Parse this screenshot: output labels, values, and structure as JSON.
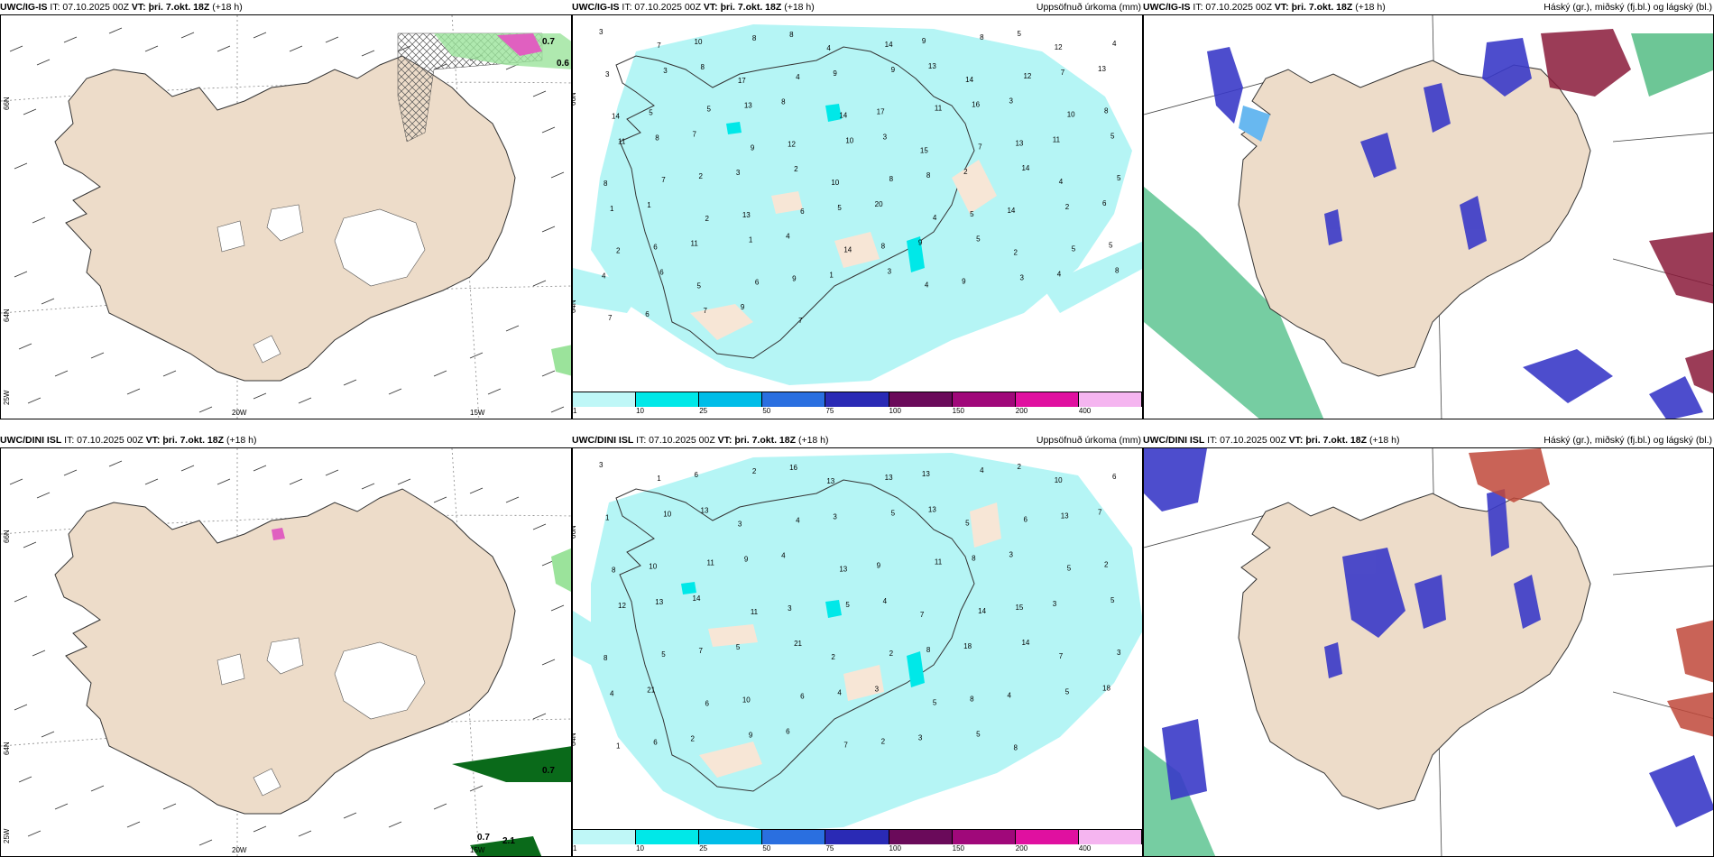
{
  "panels": {
    "p1": {
      "model": "UWC/IG-IS",
      "it": "IT: 07.10.2025 00Z",
      "vt": "VT: þri. 7.okt. 18Z",
      "lead": "(+18 h)",
      "title": ""
    },
    "p2": {
      "model": "UWC/IG-IS",
      "it": "IT: 07.10.2025 00Z",
      "vt": "VT: þri. 7.okt. 18Z",
      "lead": "(+18 h)",
      "title": "Uppsöfnuð úrkoma (mm)"
    },
    "p3": {
      "model": "UWC/IG-IS",
      "it": "IT: 07.10.2025 00Z",
      "vt": "VT: þri. 7.okt. 18Z",
      "lead": "(+18 h)",
      "title": "Háský (gr.), miðský (fj.bl.) og lágský (bl.)"
    },
    "p4": {
      "model": "UWC/DINI ISL",
      "it": "IT: 07.10.2025 00Z",
      "vt": "VT: þri. 7.okt. 18Z",
      "lead": "(+18 h)",
      "title": ""
    },
    "p5": {
      "model": "UWC/DINI ISL",
      "it": "IT: 07.10.2025 00Z",
      "vt": "VT: þri. 7.okt. 18Z",
      "lead": "(+18 h)",
      "title": "Uppsöfnuð úrkoma (mm)"
    },
    "p6": {
      "model": "UWC/DINI ISL",
      "it": "IT: 07.10.2025 00Z",
      "vt": "VT: þri. 7.okt. 18Z",
      "lead": "(+18 h)",
      "title": "Háský (gr.), miðský (fj.bl.) og lágský (bl.)"
    }
  },
  "axes": {
    "lat66": "66N",
    "lat64": "64N",
    "lon25": "25W",
    "lon20": "20W",
    "lon15": "15W"
  },
  "wind_labels": {
    "top_a": "0.7",
    "top_b": "0.6",
    "bot_a": "0.7",
    "bot_b": "0.7",
    "bot_c": "2.1"
  },
  "legend": {
    "colors": [
      "#bff7f7",
      "#00e8e8",
      "#00bde8",
      "#2a6fe0",
      "#2a2ab5",
      "#6a0a5a",
      "#a0087a",
      "#e010a0",
      "#f5b5f0"
    ],
    "ticks": [
      "1",
      "10",
      "25",
      "50",
      "75",
      "100",
      "150",
      "200",
      "400"
    ]
  },
  "precip_top": [
    "3",
    "7",
    "10",
    "8",
    "8",
    "4",
    "14",
    "9",
    "8",
    "5",
    "12",
    "4",
    "3",
    "3",
    "8",
    "17",
    "4",
    "9",
    "9",
    "13",
    "14",
    "12",
    "7",
    "13",
    "14",
    "5",
    "5",
    "13",
    "8",
    "14",
    "17",
    "11",
    "16",
    "3",
    "10",
    "8",
    "11",
    "8",
    "7",
    "9",
    "12",
    "10",
    "3",
    "15",
    "7",
    "13",
    "11",
    "5",
    "8",
    "7",
    "2",
    "3",
    "2",
    "10",
    "8",
    "8",
    "2",
    "14",
    "4",
    "5",
    "1",
    "1",
    "2",
    "13",
    "6",
    "5",
    "20",
    "4",
    "5",
    "14",
    "2",
    "6",
    "2",
    "6",
    "11",
    "1",
    "4",
    "14",
    "8",
    "9",
    "5",
    "2",
    "5",
    "5",
    "4",
    "6",
    "5",
    "6",
    "9",
    "1",
    "3",
    "4",
    "9",
    "3",
    "4",
    "8",
    "7",
    "6",
    "7",
    "9",
    "7"
  ],
  "precip_bot": [
    "3",
    "1",
    "6",
    "2",
    "16",
    "13",
    "13",
    "13",
    "4",
    "2",
    "10",
    "6",
    "1",
    "10",
    "13",
    "3",
    "4",
    "3",
    "5",
    "13",
    "5",
    "6",
    "13",
    "7",
    "8",
    "10",
    "11",
    "9",
    "4",
    "13",
    "9",
    "11",
    "8",
    "3",
    "5",
    "2",
    "12",
    "13",
    "14",
    "11",
    "3",
    "5",
    "4",
    "7",
    "14",
    "15",
    "3",
    "5",
    "8",
    "5",
    "7",
    "5",
    "21",
    "2",
    "2",
    "8",
    "18",
    "14",
    "7",
    "3",
    "4",
    "21",
    "6",
    "10",
    "6",
    "4",
    "3",
    "5",
    "8",
    "4",
    "5",
    "18",
    "1",
    "6",
    "2",
    "9",
    "6",
    "7",
    "2",
    "3",
    "5",
    "8"
  ]
}
